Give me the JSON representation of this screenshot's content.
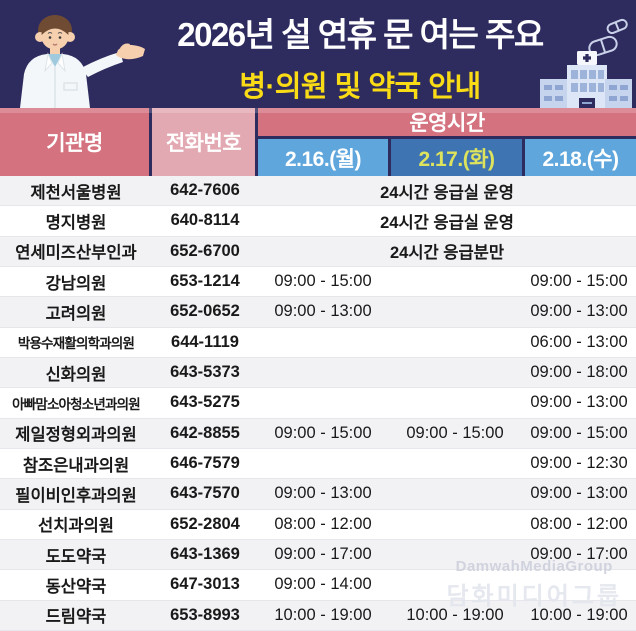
{
  "banner": {
    "title_line1": "2026년 설 연휴 문 여는 주요",
    "title_line2": "병·의원 및 약국 안내",
    "bg_color": "#2e2b5f",
    "title_color": "#ffffff",
    "subtitle_color": "#f9dc15"
  },
  "table": {
    "col_institution": "기관명",
    "col_phone": "전화번호",
    "col_hours": "운영시간",
    "header_colors": {
      "institution_bg": "#d4737f",
      "phone_bg": "#e3a9b2",
      "hours_bg": "#d4737f"
    },
    "date_cols": [
      {
        "label": "2.16.(월)",
        "bg": "#5fa6dc",
        "fg": "#ffffff"
      },
      {
        "label": "2.17.(화)",
        "bg": "#3f74b3",
        "fg": "#dde35c"
      },
      {
        "label": "2.18.(수)",
        "bg": "#5fa6dc",
        "fg": "#ffffff"
      }
    ],
    "rows": [
      {
        "name": "제천서울병원",
        "phone": "642-7606",
        "span": "24시간 응급실 운영"
      },
      {
        "name": "명지병원",
        "phone": "640-8114",
        "span": "24시간 응급실 운영"
      },
      {
        "name": "연세미즈산부인과",
        "phone": "652-6700",
        "span": "24시간 응급분만"
      },
      {
        "name": "강남의원",
        "phone": "653-1214",
        "times": [
          "09:00 - 15:00",
          "",
          "09:00 - 15:00"
        ]
      },
      {
        "name": "고려의원",
        "phone": "652-0652",
        "times": [
          "09:00 - 13:00",
          "",
          "09:00 - 13:00"
        ]
      },
      {
        "name": "박용수재활의학과의원",
        "phone": "644-1119",
        "times": [
          "",
          "",
          "06:00 - 13:00"
        ]
      },
      {
        "name": "신화의원",
        "phone": "643-5373",
        "times": [
          "",
          "",
          "09:00 - 18:00"
        ]
      },
      {
        "name": "아빠맘소아청소년과의원",
        "phone": "643-5275",
        "times": [
          "",
          "",
          "09:00 - 13:00"
        ]
      },
      {
        "name": "제일정형외과의원",
        "phone": "642-8855",
        "times": [
          "09:00 - 15:00",
          "09:00 - 15:00",
          "09:00 - 15:00"
        ]
      },
      {
        "name": "참조은내과의원",
        "phone": "646-7579",
        "times": [
          "",
          "",
          "09:00 - 12:30"
        ]
      },
      {
        "name": "필이비인후과의원",
        "phone": "643-7570",
        "times": [
          "09:00 - 13:00",
          "",
          "09:00 - 13:00"
        ]
      },
      {
        "name": "선치과의원",
        "phone": "652-2804",
        "times": [
          "08:00 - 12:00",
          "",
          "08:00 - 12:00"
        ]
      },
      {
        "name": "도도약국",
        "phone": "643-1369",
        "times": [
          "09:00 - 17:00",
          "",
          "09:00 - 17:00"
        ]
      },
      {
        "name": "동산약국",
        "phone": "647-3013",
        "times": [
          "09:00 - 14:00",
          "",
          ""
        ]
      },
      {
        "name": "드림약국",
        "phone": "653-8993",
        "times": [
          "10:00 - 19:00",
          "10:00 - 19:00",
          "10:00 - 19:00"
        ]
      }
    ]
  },
  "watermark": {
    "line1": "DamwahMediaGroup",
    "line2": "담화미디어그룹"
  },
  "icons": {
    "doctor": "doctor-illustration",
    "pills": "pills-outline-icon",
    "hospital": "hospital-building-icon"
  }
}
